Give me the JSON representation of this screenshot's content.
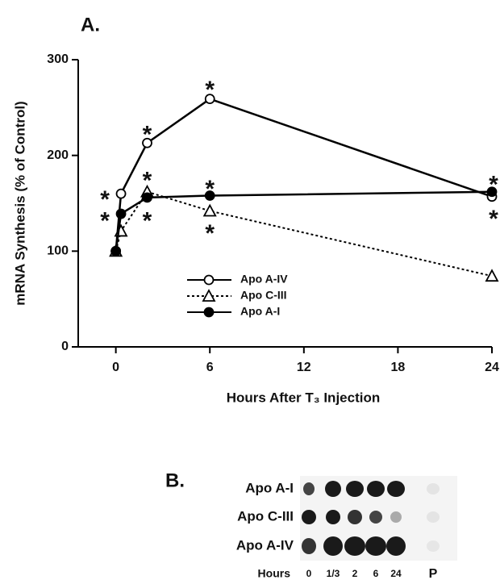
{
  "chart_data": {
    "type": "line",
    "panel_label": "A.",
    "x_label": "Hours After T₃ Injection",
    "y_label": "mRNA Synthesis (% of Control)",
    "x": [
      0,
      0.33,
      2,
      6,
      24
    ],
    "xlim": [
      -2.4,
      24
    ],
    "xticks": [
      0,
      6,
      12,
      18,
      24
    ],
    "ylim": [
      0,
      300
    ],
    "yticks": [
      0,
      100,
      200,
      300
    ],
    "legend": "center",
    "series": [
      {
        "name": "Apo A-IV",
        "color": "#000000",
        "marker": "circle",
        "filled": false,
        "dashed": false,
        "values": [
          100,
          160,
          213,
          259,
          157
        ]
      },
      {
        "name": "Apo C-III",
        "color": "#000000",
        "marker": "triangle",
        "filled": false,
        "dashed": true,
        "values": [
          100,
          121,
          162,
          142,
          74
        ]
      },
      {
        "name": "Apo A-I",
        "color": "#000000",
        "marker": "circle",
        "filled": true,
        "dashed": false,
        "values": [
          100,
          139,
          156,
          158,
          162
        ]
      }
    ],
    "annotations": [
      {
        "text": "*",
        "x": -0.7,
        "y": 159
      },
      {
        "text": "*",
        "x": -0.7,
        "y": 137
      },
      {
        "text": "*",
        "x": 2,
        "y": 227
      },
      {
        "text": "*",
        "x": 2,
        "y": 179
      },
      {
        "text": "*",
        "x": 2,
        "y": 137
      },
      {
        "text": "*",
        "x": 6,
        "y": 274
      },
      {
        "text": "*",
        "x": 6,
        "y": 170
      },
      {
        "text": "*",
        "x": 6,
        "y": 124
      },
      {
        "text": "*",
        "x": 24.1,
        "y": 175
      },
      {
        "text": "*",
        "x": 24.1,
        "y": 139
      }
    ]
  },
  "blot": {
    "panel_label": "B.",
    "rows": [
      "Apo A-I",
      "Apo C-III",
      "Apo A-IV"
    ],
    "hours_label": "Hours",
    "columns": [
      "0",
      "1/3",
      "2",
      "6",
      "24",
      "P"
    ]
  }
}
